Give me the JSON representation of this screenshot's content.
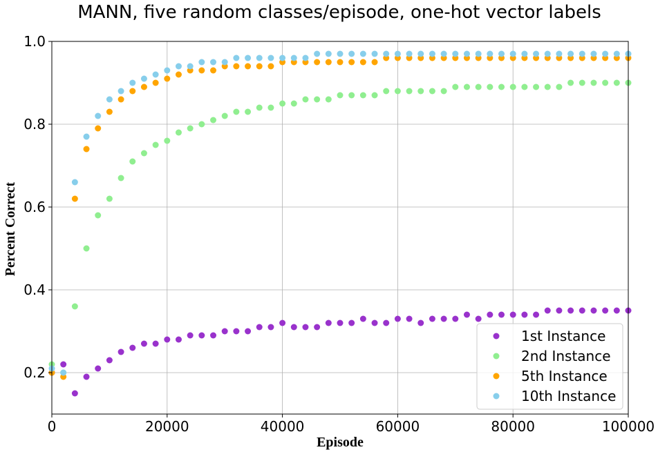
{
  "chart_data": {
    "type": "scatter",
    "title": "MANN, five random classes/episode, one-hot vector labels",
    "xlabel": "Episode",
    "ylabel": "Percent Correct",
    "xlim": [
      0,
      100000
    ],
    "ylim": [
      0.1,
      1.0
    ],
    "xticks": [
      0,
      20000,
      40000,
      60000,
      80000,
      100000
    ],
    "yticks": [
      0.2,
      0.4,
      0.6,
      0.8,
      1.0
    ],
    "xtick_labels": [
      "0",
      "20000",
      "40000",
      "60000",
      "80000",
      "100000"
    ],
    "ytick_labels": [
      "0.2",
      "0.4",
      "0.6",
      "0.8",
      "1.0"
    ],
    "grid": true,
    "legend_position": "lower-right",
    "series": [
      {
        "name": "1st Instance",
        "color": "#9932CC",
        "x": [
          0,
          2000,
          4000,
          6000,
          8000,
          10000,
          12000,
          14000,
          16000,
          18000,
          20000,
          22000,
          24000,
          26000,
          28000,
          30000,
          32000,
          34000,
          36000,
          38000,
          40000,
          42000,
          44000,
          46000,
          48000,
          50000,
          52000,
          54000,
          56000,
          58000,
          60000,
          62000,
          64000,
          66000,
          68000,
          70000,
          72000,
          74000,
          76000,
          78000,
          80000,
          82000,
          84000,
          86000,
          88000,
          90000,
          92000,
          94000,
          96000,
          98000,
          100000
        ],
        "y": [
          0.2,
          0.22,
          0.15,
          0.19,
          0.21,
          0.23,
          0.25,
          0.26,
          0.27,
          0.27,
          0.28,
          0.28,
          0.29,
          0.29,
          0.29,
          0.3,
          0.3,
          0.3,
          0.31,
          0.31,
          0.32,
          0.31,
          0.31,
          0.31,
          0.32,
          0.32,
          0.32,
          0.33,
          0.32,
          0.32,
          0.33,
          0.33,
          0.32,
          0.33,
          0.33,
          0.33,
          0.34,
          0.33,
          0.34,
          0.34,
          0.34,
          0.34,
          0.34,
          0.35,
          0.35,
          0.35,
          0.35,
          0.35,
          0.35,
          0.35,
          0.35
        ]
      },
      {
        "name": "2nd Instance",
        "color": "#90EE90",
        "x": [
          0,
          2000,
          4000,
          6000,
          8000,
          10000,
          12000,
          14000,
          16000,
          18000,
          20000,
          22000,
          24000,
          26000,
          28000,
          30000,
          32000,
          34000,
          36000,
          38000,
          40000,
          42000,
          44000,
          46000,
          48000,
          50000,
          52000,
          54000,
          56000,
          58000,
          60000,
          62000,
          64000,
          66000,
          68000,
          70000,
          72000,
          74000,
          76000,
          78000,
          80000,
          82000,
          84000,
          86000,
          88000,
          90000,
          92000,
          94000,
          96000,
          98000,
          100000
        ],
        "y": [
          0.22,
          0.2,
          0.36,
          0.5,
          0.58,
          0.62,
          0.67,
          0.71,
          0.73,
          0.75,
          0.76,
          0.78,
          0.79,
          0.8,
          0.81,
          0.82,
          0.83,
          0.83,
          0.84,
          0.84,
          0.85,
          0.85,
          0.86,
          0.86,
          0.86,
          0.87,
          0.87,
          0.87,
          0.87,
          0.88,
          0.88,
          0.88,
          0.88,
          0.88,
          0.88,
          0.89,
          0.89,
          0.89,
          0.89,
          0.89,
          0.89,
          0.89,
          0.89,
          0.89,
          0.89,
          0.9,
          0.9,
          0.9,
          0.9,
          0.9,
          0.9
        ]
      },
      {
        "name": "5th Instance",
        "color": "#FFA500",
        "x": [
          0,
          2000,
          4000,
          6000,
          8000,
          10000,
          12000,
          14000,
          16000,
          18000,
          20000,
          22000,
          24000,
          26000,
          28000,
          30000,
          32000,
          34000,
          36000,
          38000,
          40000,
          42000,
          44000,
          46000,
          48000,
          50000,
          52000,
          54000,
          56000,
          58000,
          60000,
          62000,
          64000,
          66000,
          68000,
          70000,
          72000,
          74000,
          76000,
          78000,
          80000,
          82000,
          84000,
          86000,
          88000,
          90000,
          92000,
          94000,
          96000,
          98000,
          100000
        ],
        "y": [
          0.2,
          0.19,
          0.62,
          0.74,
          0.79,
          0.83,
          0.86,
          0.88,
          0.89,
          0.9,
          0.91,
          0.92,
          0.93,
          0.93,
          0.93,
          0.94,
          0.94,
          0.94,
          0.94,
          0.94,
          0.95,
          0.95,
          0.95,
          0.95,
          0.95,
          0.95,
          0.95,
          0.95,
          0.95,
          0.96,
          0.96,
          0.96,
          0.96,
          0.96,
          0.96,
          0.96,
          0.96,
          0.96,
          0.96,
          0.96,
          0.96,
          0.96,
          0.96,
          0.96,
          0.96,
          0.96,
          0.96,
          0.96,
          0.96,
          0.96,
          0.96
        ]
      },
      {
        "name": "10th Instance",
        "color": "#87CEEB",
        "x": [
          0,
          2000,
          4000,
          6000,
          8000,
          10000,
          12000,
          14000,
          16000,
          18000,
          20000,
          22000,
          24000,
          26000,
          28000,
          30000,
          32000,
          34000,
          36000,
          38000,
          40000,
          42000,
          44000,
          46000,
          48000,
          50000,
          52000,
          54000,
          56000,
          58000,
          60000,
          62000,
          64000,
          66000,
          68000,
          70000,
          72000,
          74000,
          76000,
          78000,
          80000,
          82000,
          84000,
          86000,
          88000,
          90000,
          92000,
          94000,
          96000,
          98000,
          100000
        ],
        "y": [
          0.21,
          0.2,
          0.66,
          0.77,
          0.82,
          0.86,
          0.88,
          0.9,
          0.91,
          0.92,
          0.93,
          0.94,
          0.94,
          0.95,
          0.95,
          0.95,
          0.96,
          0.96,
          0.96,
          0.96,
          0.96,
          0.96,
          0.96,
          0.97,
          0.97,
          0.97,
          0.97,
          0.97,
          0.97,
          0.97,
          0.97,
          0.97,
          0.97,
          0.97,
          0.97,
          0.97,
          0.97,
          0.97,
          0.97,
          0.97,
          0.97,
          0.97,
          0.97,
          0.97,
          0.97,
          0.97,
          0.97,
          0.97,
          0.97,
          0.97,
          0.97
        ]
      }
    ]
  }
}
